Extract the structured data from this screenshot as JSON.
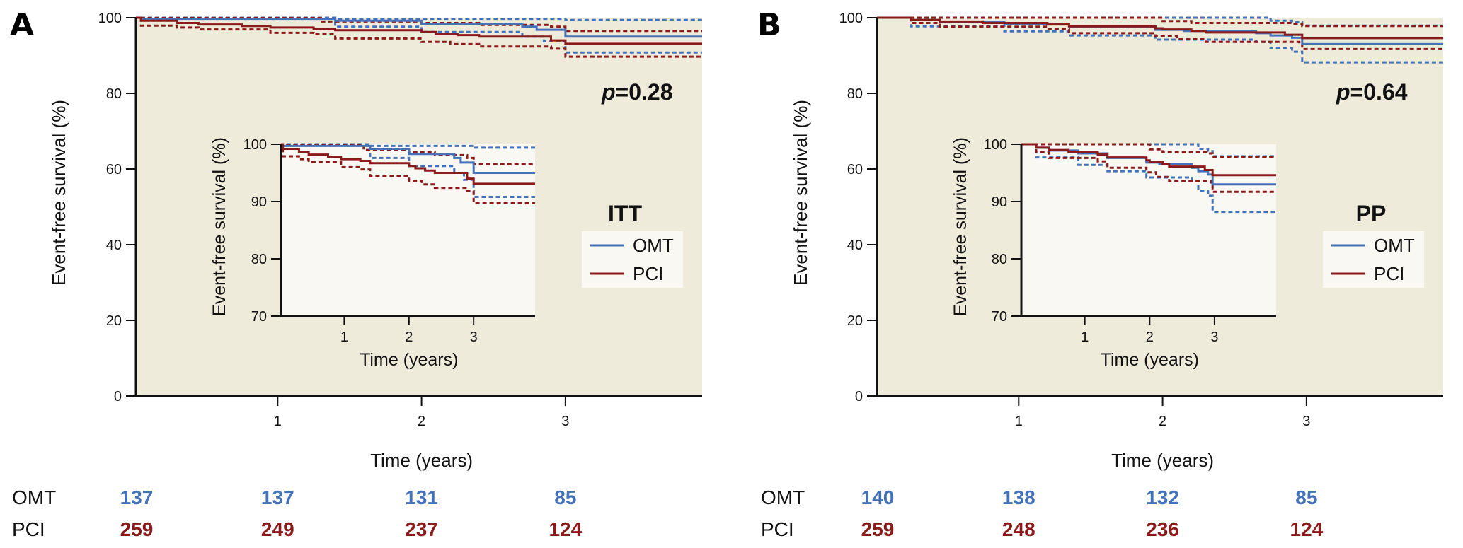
{
  "chart_data": [
    {
      "type": "line",
      "subtype": "kaplan-meier",
      "panel": "A",
      "group_label": "ITT",
      "p_value_prefix": "p",
      "p_value_text": "=0.28",
      "xlabel": "Time (years)",
      "ylabel": "Event-free survival (%)",
      "xlim": [
        0,
        3.95
      ],
      "ylim": [
        0,
        100
      ],
      "xticks": [
        1,
        2,
        3
      ],
      "yticks": [
        0,
        20,
        40,
        60,
        80,
        100
      ],
      "legend": {
        "position": "right-middle",
        "entries": [
          "OMT",
          "PCI"
        ]
      },
      "inset": {
        "xlabel": "Time (years)",
        "ylabel": "Event-free survival (%)",
        "xlim": [
          0,
          3.95
        ],
        "ylim": [
          70,
          100
        ],
        "xticks": [
          1,
          2,
          3
        ],
        "yticks": [
          70,
          80,
          90,
          100
        ]
      },
      "series": [
        {
          "name": "OMT",
          "color": "#4472b8",
          "x": [
            0,
            0.05,
            1.4,
            2.0,
            2.7,
            2.8,
            3.0,
            3.95
          ],
          "y": [
            100,
            99.7,
            99.2,
            98.3,
            97.6,
            96.8,
            95.0,
            95.0
          ],
          "ci_upper": {
            "x": [
              0,
              1.4,
              3.0,
              3.95
            ],
            "y": [
              100,
              99.7,
              99.4,
              99.4
            ]
          },
          "ci_lower": {
            "x": [
              0,
              1.4,
              2.0,
              2.7,
              2.85,
              3.0,
              3.95
            ],
            "y": [
              100,
              97.6,
              96.2,
              95.0,
              93.8,
              90.8,
              90.8
            ]
          }
        },
        {
          "name": "PCI",
          "color": "#8b1a1a",
          "x": [
            0,
            0.05,
            0.3,
            0.45,
            0.75,
            0.95,
            1.25,
            1.4,
            2.0,
            2.1,
            2.25,
            2.4,
            2.9,
            3.0,
            3.95
          ],
          "y": [
            100,
            99.2,
            98.6,
            98.2,
            97.8,
            97.4,
            97.1,
            96.7,
            96.2,
            95.8,
            95.4,
            95.0,
            94.0,
            93.1,
            93.1
          ],
          "ci_upper": {
            "x": [
              0,
              0.05,
              1.3,
              2.0,
              2.4,
              2.9,
              3.0,
              3.95
            ],
            "y": [
              100,
              99.9,
              99.0,
              98.6,
              98.1,
              97.6,
              96.5,
              96.5
            ]
          },
          "ci_lower": {
            "x": [
              0,
              0.05,
              0.3,
              0.45,
              0.95,
              1.25,
              1.4,
              2.0,
              2.2,
              2.4,
              2.9,
              3.0,
              3.95
            ],
            "y": [
              100,
              97.9,
              97.4,
              96.9,
              96.0,
              95.6,
              94.5,
              93.6,
              93.0,
              92.4,
              91.8,
              89.7,
              89.7
            ]
          }
        }
      ],
      "risk_table": {
        "time_points": [
          0,
          1,
          2,
          3
        ],
        "rows": [
          {
            "label": "OMT",
            "color": "#4472b8",
            "values": [
              "137",
              "137",
              "131",
              "85"
            ]
          },
          {
            "label": "PCI",
            "color": "#8b1a1a",
            "values": [
              "259",
              "249",
              "237",
              "124"
            ]
          }
        ]
      }
    },
    {
      "type": "line",
      "subtype": "kaplan-meier",
      "panel": "B",
      "group_label": "PP",
      "p_value_prefix": "p",
      "p_value_text": "=0.64",
      "xlabel": "Time (years)",
      "ylabel": "Event-free survival (%)",
      "xlim": [
        0,
        3.95
      ],
      "ylim": [
        0,
        100
      ],
      "xticks": [
        1,
        2,
        3
      ],
      "yticks": [
        0,
        20,
        40,
        60,
        80,
        100
      ],
      "legend": {
        "position": "right-middle",
        "entries": [
          "OMT",
          "PCI"
        ]
      },
      "inset": {
        "xlabel": "Time (years)",
        "ylabel": "Event-free survival (%)",
        "xlim": [
          0,
          3.95
        ],
        "ylim": [
          70,
          100
        ],
        "xticks": [
          1,
          2,
          3
        ],
        "yticks": [
          70,
          80,
          90,
          100
        ]
      },
      "series": [
        {
          "name": "OMT",
          "color": "#4472b8",
          "x": [
            0,
            0.25,
            0.45,
            0.9,
            1.35,
            1.95,
            2.15,
            2.65,
            2.75,
            2.9,
            2.97,
            3.95
          ],
          "y": [
            100,
            99.4,
            98.9,
            98.4,
            97.6,
            96.8,
            96.5,
            95.9,
            95.3,
            94.7,
            93.0,
            93.0
          ],
          "ci_upper": {
            "x": [
              0,
              2.65,
              2.75,
              2.9,
              2.97,
              3.95
            ],
            "y": [
              100,
              100,
              99.2,
              98.8,
              97.9,
              97.9
            ]
          },
          "ci_lower": {
            "x": [
              0,
              0.25,
              0.9,
              1.35,
              1.95,
              2.65,
              2.75,
              2.9,
              2.97,
              3.95
            ],
            "y": [
              100,
              97.7,
              96.4,
              95.3,
              94.2,
              93.6,
              91.9,
              91.0,
              88.2,
              88.2
            ]
          }
        },
        {
          "name": "PCI",
          "color": "#8b1a1a",
          "x": [
            0,
            0.25,
            0.45,
            0.75,
            1.2,
            1.35,
            1.95,
            2.0,
            2.2,
            2.3,
            2.85,
            2.97,
            3.95
          ],
          "y": [
            100,
            99.4,
            99.0,
            98.6,
            98.2,
            97.7,
            97.2,
            96.9,
            96.5,
            96.1,
            95.5,
            94.6,
            94.6
          ],
          "ci_upper": {
            "x": [
              0,
              2.0,
              2.2,
              2.9,
              2.97,
              3.95
            ],
            "y": [
              100,
              99.1,
              98.6,
              98.4,
              97.8,
              97.8
            ]
          },
          "ci_lower": {
            "x": [
              0,
              0.25,
              0.45,
              1.2,
              1.35,
              1.95,
              2.1,
              2.3,
              2.95,
              2.97,
              3.95
            ],
            "y": [
              100,
              98.6,
              97.6,
              97.0,
              95.9,
              95.1,
              94.3,
              93.6,
              93.1,
              91.7,
              91.7
            ]
          }
        }
      ],
      "risk_table": {
        "time_points": [
          0,
          1,
          2,
          3
        ],
        "rows": [
          {
            "label": "OMT",
            "color": "#4472b8",
            "values": [
              "140",
              "138",
              "132",
              "85"
            ]
          },
          {
            "label": "PCI",
            "color": "#8b1a1a",
            "values": [
              "259",
              "248",
              "236",
              "124"
            ]
          }
        ]
      }
    }
  ],
  "colors": {
    "plot_background": "#efebdb",
    "inset_background": "#f9f8f3",
    "legend_background": "#f9f8f3",
    "omt": "#4472b8",
    "pci": "#8b1a1a"
  }
}
